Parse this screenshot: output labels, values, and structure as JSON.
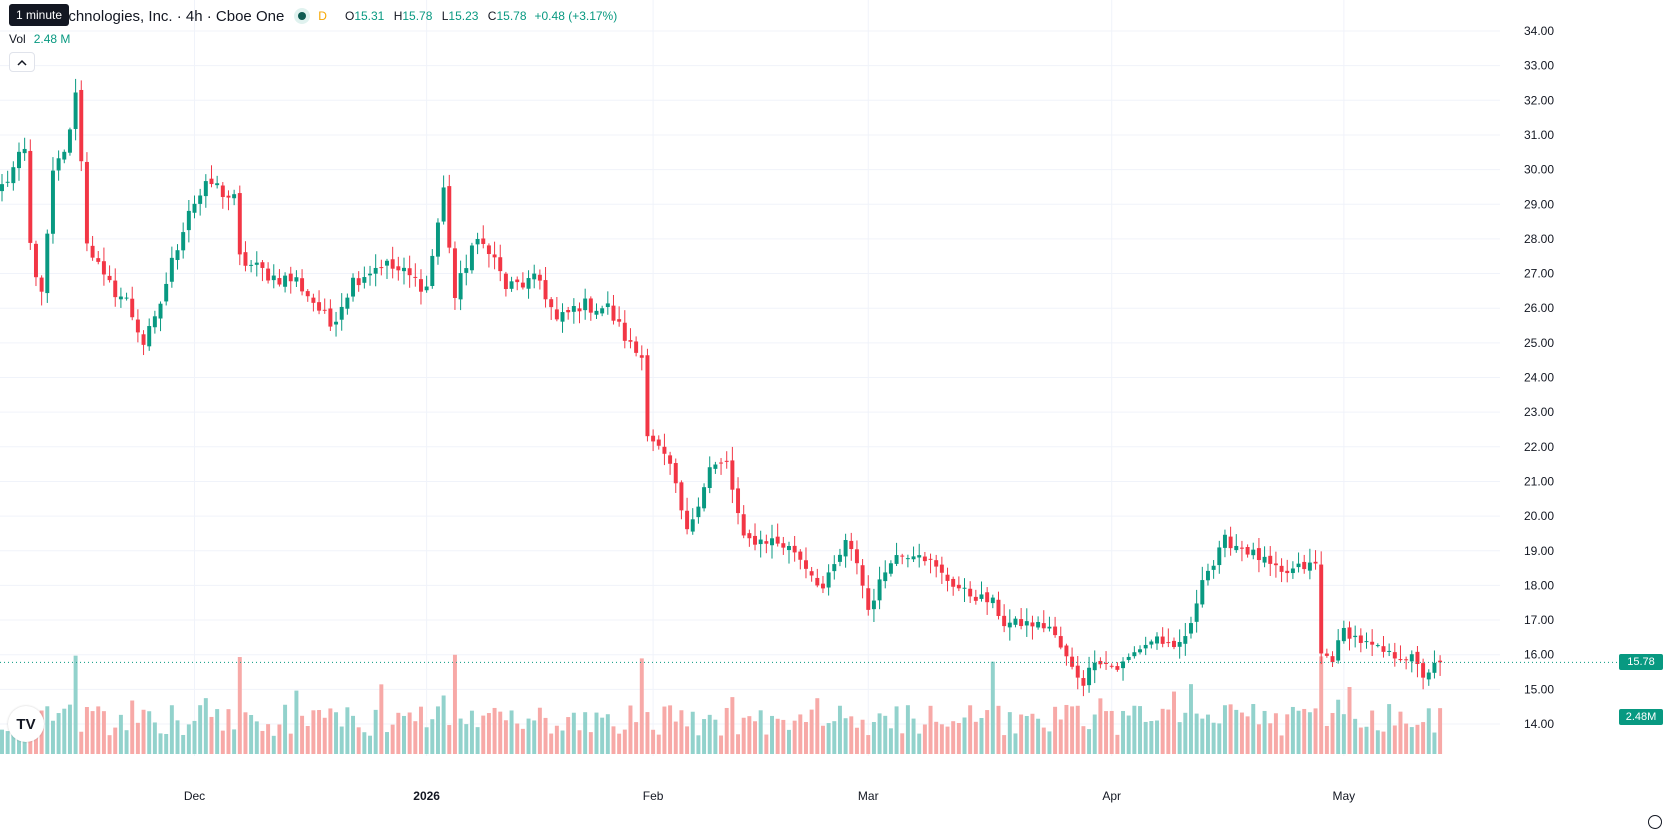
{
  "legend": {
    "title": "echnologies, Inc. · 4h · Cboe One",
    "flag": "D",
    "o_label": "O",
    "o": "15.31",
    "h_label": "H",
    "h": "15.78",
    "l_label": "L",
    "l": "15.23",
    "c_label": "C",
    "c": "15.78",
    "change": "+0.48 (+3.17%)"
  },
  "tooltip": "1 minute",
  "volume_label": "Vol",
  "volume_value": "2.48 M",
  "collapse_icon": "chevron-up-icon",
  "logo": "TV",
  "last_price_tag": "15.78",
  "last_volume_tag": "2.48M",
  "colors": {
    "up": "#089981",
    "down": "#f23645",
    "up_vol": "#92d2cc",
    "down_vol": "#f7a9a7"
  },
  "chart_data": {
    "type": "candlestick",
    "ylim": [
      13.6,
      34.3
    ],
    "yticks": [
      "14.00",
      "15.00",
      "16.00",
      "17.00",
      "18.00",
      "19.00",
      "20.00",
      "21.00",
      "22.00",
      "23.00",
      "24.00",
      "25.00",
      "26.00",
      "27.00",
      "28.00",
      "29.00",
      "30.00",
      "31.00",
      "32.00",
      "33.00",
      "34.00"
    ],
    "xticks": [
      {
        "label": "Dec",
        "i": 34
      },
      {
        "label": "2026",
        "i": 75
      },
      {
        "label": "Feb",
        "i": 115
      },
      {
        "label": "Mar",
        "i": 153
      },
      {
        "label": "Apr",
        "i": 196
      },
      {
        "label": "May",
        "i": 237
      }
    ],
    "last_price": 15.78,
    "anchors": [
      [
        0,
        29.5
      ],
      [
        4,
        30.5
      ],
      [
        5,
        27.8
      ],
      [
        7,
        26.3
      ],
      [
        9,
        29.8
      ],
      [
        12,
        31.0
      ],
      [
        13,
        32.4
      ],
      [
        15,
        28.0
      ],
      [
        18,
        26.8
      ],
      [
        22,
        26.2
      ],
      [
        25,
        25.0
      ],
      [
        27,
        25.6
      ],
      [
        30,
        27.3
      ],
      [
        33,
        28.9
      ],
      [
        37,
        29.6
      ],
      [
        41,
        29.1
      ],
      [
        42,
        27.4
      ],
      [
        48,
        26.9
      ],
      [
        52,
        26.8
      ],
      [
        55,
        26.2
      ],
      [
        58,
        25.5
      ],
      [
        62,
        26.8
      ],
      [
        67,
        27.3
      ],
      [
        71,
        27.0
      ],
      [
        75,
        26.6
      ],
      [
        78,
        29.4
      ],
      [
        80,
        26.3
      ],
      [
        83,
        27.8
      ],
      [
        86,
        27.8
      ],
      [
        89,
        26.6
      ],
      [
        95,
        26.8
      ],
      [
        98,
        25.6
      ],
      [
        102,
        26.1
      ],
      [
        107,
        26.0
      ],
      [
        111,
        24.9
      ],
      [
        113,
        24.6
      ],
      [
        114,
        22.5
      ],
      [
        118,
        21.4
      ],
      [
        121,
        19.5
      ],
      [
        125,
        21.4
      ],
      [
        128,
        21.5
      ],
      [
        131,
        19.3
      ],
      [
        136,
        19.3
      ],
      [
        140,
        19.0
      ],
      [
        145,
        17.9
      ],
      [
        149,
        19.2
      ],
      [
        151,
        18.7
      ],
      [
        153,
        17.3
      ],
      [
        157,
        18.8
      ],
      [
        162,
        19.0
      ],
      [
        166,
        18.3
      ],
      [
        170,
        17.8
      ],
      [
        175,
        17.5
      ],
      [
        177,
        16.9
      ],
      [
        181,
        16.9
      ],
      [
        185,
        16.8
      ],
      [
        189,
        15.6
      ],
      [
        191,
        15.2
      ],
      [
        193,
        15.9
      ],
      [
        197,
        15.6
      ],
      [
        201,
        16.2
      ],
      [
        204,
        16.5
      ],
      [
        207,
        16.1
      ],
      [
        210,
        16.8
      ],
      [
        212,
        18.3
      ],
      [
        214,
        18.6
      ],
      [
        216,
        19.3
      ],
      [
        219,
        19.1
      ],
      [
        222,
        18.8
      ],
      [
        226,
        18.3
      ],
      [
        229,
        18.5
      ],
      [
        232,
        18.6
      ],
      [
        233,
        16.0
      ],
      [
        235,
        15.9
      ],
      [
        237,
        16.7
      ],
      [
        241,
        16.3
      ],
      [
        245,
        16.0
      ],
      [
        249,
        15.9
      ],
      [
        251,
        15.4
      ],
      [
        254,
        15.8
      ]
    ],
    "volume_spikes": [
      [
        13,
        1
      ],
      [
        42,
        1
      ],
      [
        80,
        1
      ],
      [
        113,
        1
      ],
      [
        175,
        1
      ],
      [
        233,
        1
      ]
    ]
  }
}
